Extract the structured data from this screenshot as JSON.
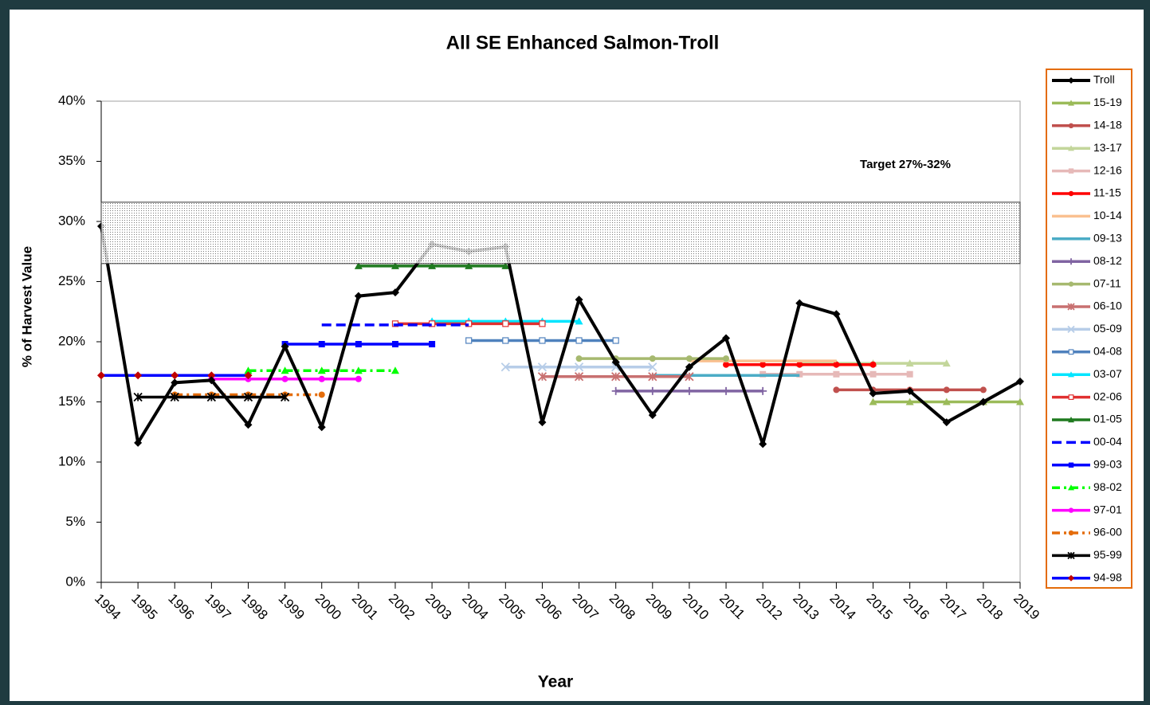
{
  "chart_data": {
    "type": "line",
    "title": "All SE Enhanced Salmon-Troll",
    "x_label": "Year",
    "y_label": "% of Harvest Value",
    "annotation": "Target  27%-32%",
    "band": {
      "from": 26.5,
      "to": 31.6
    },
    "x": [
      1994,
      1995,
      1996,
      1997,
      1998,
      1999,
      2000,
      2001,
      2002,
      2003,
      2004,
      2005,
      2006,
      2007,
      2008,
      2009,
      2010,
      2011,
      2012,
      2013,
      2014,
      2015,
      2016,
      2017,
      2018,
      2019
    ],
    "xlim": [
      1994,
      2019
    ],
    "xticks": [
      1994,
      1995,
      1996,
      1997,
      1998,
      1999,
      2000,
      2001,
      2002,
      2003,
      2004,
      2005,
      2006,
      2007,
      2008,
      2009,
      2010,
      2011,
      2012,
      2013,
      2014,
      2015,
      2016,
      2017,
      2018,
      2019
    ],
    "ylim": [
      0,
      40
    ],
    "yticks": [
      {
        "value": 0,
        "label": "0%"
      },
      {
        "value": 5,
        "label": "5%"
      },
      {
        "value": 10,
        "label": "10%"
      },
      {
        "value": 15,
        "label": "15%"
      },
      {
        "value": 20,
        "label": "20%"
      },
      {
        "value": 25,
        "label": "25%"
      },
      {
        "value": 30,
        "label": "30%"
      },
      {
        "value": 35,
        "label": "35%"
      },
      {
        "value": 40,
        "label": "40%"
      }
    ],
    "legend": "right",
    "series": [
      {
        "name": "Troll",
        "color": "#000000",
        "marker": "diamond",
        "values": [
          29.6,
          11.6,
          16.6,
          16.8,
          13.1,
          19.6,
          12.9,
          23.8,
          24.1,
          28.1,
          27.5,
          27.9,
          13.3,
          23.5,
          18.3,
          13.9,
          17.9,
          20.3,
          11.5,
          23.2,
          22.3,
          15.7,
          15.9,
          13.3,
          15.0,
          16.7
        ]
      },
      {
        "name": "15-19",
        "color": "#9bbb59",
        "marker": "triangle",
        "values": [
          null,
          null,
          null,
          null,
          null,
          null,
          null,
          null,
          null,
          null,
          null,
          null,
          null,
          null,
          null,
          null,
          null,
          null,
          null,
          null,
          null,
          15,
          15,
          15,
          15,
          15
        ]
      },
      {
        "name": "14-18",
        "color": "#c0504d",
        "marker": "circle",
        "values": [
          null,
          null,
          null,
          null,
          null,
          null,
          null,
          null,
          null,
          null,
          null,
          null,
          null,
          null,
          null,
          null,
          null,
          null,
          null,
          null,
          16,
          16,
          16,
          16,
          16,
          null
        ]
      },
      {
        "name": "13-17",
        "color": "#c3d69b",
        "marker": "triangle",
        "values": [
          null,
          null,
          null,
          null,
          null,
          null,
          null,
          null,
          null,
          null,
          null,
          null,
          null,
          null,
          null,
          null,
          null,
          null,
          null,
          18.2,
          18.2,
          18.2,
          18.2,
          18.2,
          null,
          null
        ]
      },
      {
        "name": "12-16",
        "color": "#e6b9b8",
        "marker": "square",
        "values": [
          null,
          null,
          null,
          null,
          null,
          null,
          null,
          null,
          null,
          null,
          null,
          null,
          null,
          null,
          null,
          null,
          null,
          null,
          17.3,
          17.3,
          17.3,
          17.3,
          17.3,
          null,
          null,
          null
        ]
      },
      {
        "name": "11-15",
        "color": "#ff0000",
        "marker": "circle",
        "values": [
          null,
          null,
          null,
          null,
          null,
          null,
          null,
          null,
          null,
          null,
          null,
          null,
          null,
          null,
          null,
          null,
          null,
          18.1,
          18.1,
          18.1,
          18.1,
          18.1,
          null,
          null,
          null,
          null
        ]
      },
      {
        "name": "10-14",
        "color": "#fac090",
        "marker": "none",
        "values": [
          null,
          null,
          null,
          null,
          null,
          null,
          null,
          null,
          null,
          null,
          null,
          null,
          null,
          null,
          null,
          null,
          18.4,
          18.4,
          18.4,
          18.4,
          18.4,
          null,
          null,
          null,
          null,
          null
        ]
      },
      {
        "name": "09-13",
        "color": "#4bacc6",
        "marker": "none",
        "values": [
          null,
          null,
          null,
          null,
          null,
          null,
          null,
          null,
          null,
          null,
          null,
          null,
          null,
          null,
          null,
          17.2,
          17.2,
          17.2,
          17.2,
          17.2,
          null,
          null,
          null,
          null,
          null,
          null
        ]
      },
      {
        "name": "08-12",
        "color": "#8064a2",
        "marker": "plus",
        "values": [
          null,
          null,
          null,
          null,
          null,
          null,
          null,
          null,
          null,
          null,
          null,
          null,
          null,
          null,
          15.9,
          15.9,
          15.9,
          15.9,
          15.9,
          null,
          null,
          null,
          null,
          null,
          null,
          null
        ]
      },
      {
        "name": "07-11",
        "color": "#a6b96f",
        "marker": "circle",
        "values": [
          null,
          null,
          null,
          null,
          null,
          null,
          null,
          null,
          null,
          null,
          null,
          null,
          null,
          18.6,
          18.6,
          18.6,
          18.6,
          18.6,
          null,
          null,
          null,
          null,
          null,
          null,
          null,
          null
        ]
      },
      {
        "name": "06-10",
        "color": "#c87070",
        "marker": "star",
        "values": [
          null,
          null,
          null,
          null,
          null,
          null,
          null,
          null,
          null,
          null,
          null,
          null,
          17.1,
          17.1,
          17.1,
          17.1,
          17.1,
          null,
          null,
          null,
          null,
          null,
          null,
          null,
          null,
          null
        ]
      },
      {
        "name": "05-09",
        "color": "#b7cde8",
        "marker": "x",
        "values": [
          null,
          null,
          null,
          null,
          null,
          null,
          null,
          null,
          null,
          null,
          null,
          17.9,
          17.9,
          17.9,
          17.9,
          17.9,
          null,
          null,
          null,
          null,
          null,
          null,
          null,
          null,
          null,
          null
        ]
      },
      {
        "name": "04-08",
        "color": "#4f81bd",
        "marker": "square-open",
        "values": [
          null,
          null,
          null,
          null,
          null,
          null,
          null,
          null,
          null,
          null,
          20.1,
          20.1,
          20.1,
          20.1,
          20.1,
          null,
          null,
          null,
          null,
          null,
          null,
          null,
          null,
          null,
          null,
          null
        ]
      },
      {
        "name": "03-07",
        "color": "#00e5ff",
        "marker": "triangle",
        "values": [
          null,
          null,
          null,
          null,
          null,
          null,
          null,
          null,
          null,
          21.7,
          21.7,
          21.7,
          21.7,
          21.7,
          null,
          null,
          null,
          null,
          null,
          null,
          null,
          null,
          null,
          null,
          null,
          null
        ]
      },
      {
        "name": "02-06",
        "color": "#e03030",
        "marker": "square-open",
        "values": [
          null,
          null,
          null,
          null,
          null,
          null,
          null,
          null,
          21.5,
          21.5,
          21.5,
          21.5,
          21.5,
          null,
          null,
          null,
          null,
          null,
          null,
          null,
          null,
          null,
          null,
          null,
          null,
          null
        ]
      },
      {
        "name": "01-05",
        "color": "#1f7a1f",
        "marker": "triangle",
        "values": [
          null,
          null,
          null,
          null,
          null,
          null,
          null,
          26.3,
          26.3,
          26.3,
          26.3,
          26.3,
          null,
          null,
          null,
          null,
          null,
          null,
          null,
          null,
          null,
          null,
          null,
          null,
          null,
          null
        ]
      },
      {
        "name": "00-04",
        "color": "#0000ff",
        "marker": "none",
        "dash": "dash",
        "values": [
          null,
          null,
          null,
          null,
          null,
          null,
          21.4,
          21.4,
          21.4,
          21.4,
          21.4,
          null,
          null,
          null,
          null,
          null,
          null,
          null,
          null,
          null,
          null,
          null,
          null,
          null,
          null,
          null
        ]
      },
      {
        "name": "99-03",
        "color": "#0000ff",
        "marker": "square",
        "values": [
          null,
          null,
          null,
          null,
          null,
          19.8,
          19.8,
          19.8,
          19.8,
          19.8,
          null,
          null,
          null,
          null,
          null,
          null,
          null,
          null,
          null,
          null,
          null,
          null,
          null,
          null,
          null,
          null
        ]
      },
      {
        "name": "98-02",
        "color": "#00ff00",
        "marker": "triangle",
        "dash": "dashdot",
        "values": [
          null,
          null,
          null,
          null,
          17.6,
          17.6,
          17.6,
          17.6,
          17.6,
          null,
          null,
          null,
          null,
          null,
          null,
          null,
          null,
          null,
          null,
          null,
          null,
          null,
          null,
          null,
          null,
          null
        ]
      },
      {
        "name": "97-01",
        "color": "#ff00ff",
        "marker": "circle",
        "values": [
          null,
          null,
          null,
          16.9,
          16.9,
          16.9,
          16.9,
          16.9,
          null,
          null,
          null,
          null,
          null,
          null,
          null,
          null,
          null,
          null,
          null,
          null,
          null,
          null,
          null,
          null,
          null,
          null
        ]
      },
      {
        "name": "96-00",
        "color": "#e46c0a",
        "marker": "circle",
        "dash": "dashdot",
        "values": [
          null,
          null,
          15.6,
          15.6,
          15.6,
          15.6,
          15.6,
          null,
          null,
          null,
          null,
          null,
          null,
          null,
          null,
          null,
          null,
          null,
          null,
          null,
          null,
          null,
          null,
          null,
          null,
          null
        ]
      },
      {
        "name": "95-99",
        "color": "#000000",
        "marker": "star",
        "values": [
          null,
          15.4,
          15.4,
          15.4,
          15.4,
          15.4,
          null,
          null,
          null,
          null,
          null,
          null,
          null,
          null,
          null,
          null,
          null,
          null,
          null,
          null,
          null,
          null,
          null,
          null,
          null,
          null
        ]
      },
      {
        "name": "94-98",
        "color": "#0000ff",
        "marker": "diamond",
        "marker_color": "#c00000",
        "values": [
          17.2,
          17.2,
          17.2,
          17.2,
          17.2,
          null,
          null,
          null,
          null,
          null,
          null,
          null,
          null,
          null,
          null,
          null,
          null,
          null,
          null,
          null,
          null,
          null,
          null,
          null,
          null,
          null
        ]
      }
    ]
  }
}
